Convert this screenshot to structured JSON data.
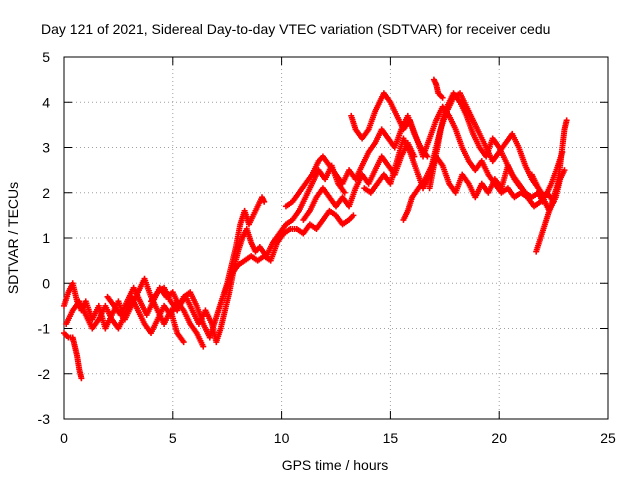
{
  "chart_data": {
    "type": "scatter",
    "title": "Day 121 of 2021, Sidereal Day-to-day VTEC variation (SDTVAR) for receiver cedu",
    "xlabel": "GPS time / hours",
    "ylabel": "SDTVAR / TECUs",
    "xlim": [
      0,
      25
    ],
    "ylim": [
      -3,
      5
    ],
    "xticks": [
      0,
      5,
      10,
      15,
      20,
      25
    ],
    "yticks": [
      -3,
      -2,
      -1,
      0,
      1,
      2,
      3,
      4,
      5
    ],
    "grid": true,
    "marker": "plus",
    "color": "#ff0000",
    "series": [
      {
        "points": [
          [
            0.0,
            -0.5
          ],
          [
            0.2,
            -0.2
          ],
          [
            0.4,
            0.0
          ],
          [
            0.6,
            -0.4
          ],
          [
            0.8,
            -0.6
          ],
          [
            1.0,
            -0.4
          ],
          [
            1.3,
            -0.8
          ],
          [
            1.6,
            -0.5
          ],
          [
            1.9,
            -1.0
          ],
          [
            2.2,
            -0.7
          ],
          [
            2.5,
            -0.4
          ],
          [
            2.8,
            -0.8
          ],
          [
            3.1,
            -0.5
          ],
          [
            3.4,
            -0.2
          ],
          [
            3.7,
            0.1
          ],
          [
            4.0,
            -0.3
          ],
          [
            4.3,
            -0.6
          ],
          [
            4.6,
            -0.9
          ],
          [
            4.9,
            -0.6
          ],
          [
            5.2,
            -1.1
          ],
          [
            5.5,
            -1.3
          ]
        ]
      },
      {
        "points": [
          [
            0.1,
            -0.9
          ],
          [
            0.4,
            -0.6
          ],
          [
            0.7,
            -0.4
          ],
          [
            1.0,
            -0.7
          ],
          [
            1.3,
            -1.0
          ],
          [
            1.6,
            -0.8
          ],
          [
            1.9,
            -0.5
          ],
          [
            2.2,
            -0.8
          ],
          [
            2.5,
            -1.0
          ],
          [
            2.8,
            -0.7
          ],
          [
            3.1,
            -0.3
          ],
          [
            3.4,
            -0.6
          ],
          [
            3.7,
            -0.9
          ],
          [
            4.0,
            -1.1
          ],
          [
            4.3,
            -0.8
          ],
          [
            4.6,
            -0.5
          ],
          [
            4.9,
            -0.7
          ],
          [
            5.2,
            -0.4
          ],
          [
            5.5,
            -0.6
          ],
          [
            5.8,
            -0.9
          ],
          [
            6.1,
            -1.1
          ],
          [
            6.4,
            -1.4
          ]
        ]
      },
      {
        "points": [
          [
            0.0,
            -1.1
          ],
          [
            0.2,
            -1.2
          ],
          [
            0.4,
            -1.2
          ],
          [
            0.5,
            -1.4
          ],
          [
            0.6,
            -1.6
          ],
          [
            0.7,
            -1.9
          ],
          [
            0.8,
            -2.1
          ]
        ]
      },
      {
        "points": [
          [
            2.0,
            -0.3
          ],
          [
            2.3,
            -0.5
          ],
          [
            2.6,
            -0.7
          ],
          [
            2.9,
            -0.4
          ],
          [
            3.2,
            -0.1
          ],
          [
            3.5,
            -0.4
          ],
          [
            3.8,
            -0.7
          ],
          [
            4.1,
            -0.4
          ],
          [
            4.4,
            -0.1
          ],
          [
            4.7,
            -0.3
          ],
          [
            5.0,
            -0.2
          ],
          [
            5.3,
            -0.5
          ],
          [
            5.6,
            -0.3
          ],
          [
            5.9,
            -0.6
          ],
          [
            6.2,
            -0.9
          ],
          [
            6.5,
            -0.6
          ],
          [
            6.8,
            -0.9
          ],
          [
            7.0,
            -1.3
          ],
          [
            7.2,
            -1.0
          ],
          [
            7.4,
            -0.6
          ],
          [
            7.6,
            -0.2
          ],
          [
            7.8,
            0.3
          ],
          [
            8.0,
            0.7
          ],
          [
            8.2,
            1.0
          ],
          [
            8.4,
            1.2
          ],
          [
            8.6,
            0.9
          ],
          [
            8.8,
            0.7
          ],
          [
            9.0,
            0.8
          ],
          [
            9.3,
            0.6
          ],
          [
            9.6,
            0.9
          ],
          [
            9.9,
            1.1
          ],
          [
            10.2,
            1.3
          ],
          [
            10.5,
            1.4
          ],
          [
            10.8,
            1.6
          ],
          [
            11.1,
            1.9
          ],
          [
            11.4,
            2.2
          ],
          [
            11.7,
            2.5
          ],
          [
            12.0,
            2.3
          ],
          [
            12.3,
            2.6
          ],
          [
            12.6,
            2.2
          ],
          [
            12.9,
            2.0
          ]
        ]
      },
      {
        "points": [
          [
            4.0,
            -0.4
          ],
          [
            4.3,
            -0.2
          ],
          [
            4.6,
            -0.1
          ],
          [
            4.9,
            -0.4
          ],
          [
            5.2,
            -0.6
          ],
          [
            5.5,
            -0.3
          ],
          [
            5.8,
            -0.2
          ],
          [
            6.1,
            -0.5
          ],
          [
            6.4,
            -0.9
          ],
          [
            6.7,
            -1.2
          ],
          [
            6.9,
            -0.9
          ],
          [
            7.1,
            -0.6
          ],
          [
            7.3,
            -0.3
          ],
          [
            7.5,
            0.0
          ],
          [
            7.7,
            0.4
          ],
          [
            7.9,
            0.8
          ],
          [
            8.1,
            1.3
          ],
          [
            8.3,
            1.6
          ],
          [
            8.5,
            1.3
          ],
          [
            8.8,
            1.6
          ],
          [
            9.1,
            1.9
          ],
          [
            9.2,
            1.8
          ]
        ]
      },
      {
        "points": [
          [
            7.4,
            -0.2
          ],
          [
            7.7,
            0.2
          ],
          [
            8.0,
            0.4
          ],
          [
            8.3,
            0.5
          ],
          [
            8.6,
            0.6
          ],
          [
            8.9,
            0.5
          ],
          [
            9.2,
            0.6
          ],
          [
            9.5,
            0.5
          ],
          [
            9.8,
            0.9
          ],
          [
            10.1,
            1.1
          ],
          [
            10.4,
            1.2
          ],
          [
            10.7,
            1.2
          ],
          [
            11.0,
            1.1
          ],
          [
            11.3,
            1.3
          ],
          [
            11.6,
            1.2
          ],
          [
            11.9,
            1.4
          ],
          [
            12.2,
            1.6
          ],
          [
            12.5,
            1.5
          ],
          [
            12.8,
            1.3
          ],
          [
            13.1,
            1.4
          ],
          [
            13.3,
            1.5
          ]
        ]
      },
      {
        "points": [
          [
            10.2,
            1.7
          ],
          [
            10.5,
            1.8
          ],
          [
            10.8,
            2.0
          ],
          [
            11.1,
            2.2
          ],
          [
            11.4,
            2.4
          ],
          [
            11.7,
            2.7
          ],
          [
            11.9,
            2.8
          ],
          [
            12.2,
            2.6
          ],
          [
            12.5,
            2.4
          ],
          [
            12.8,
            2.2
          ],
          [
            13.1,
            2.5
          ],
          [
            13.4,
            2.3
          ],
          [
            13.7,
            2.6
          ],
          [
            14.0,
            2.9
          ],
          [
            14.3,
            3.1
          ],
          [
            14.6,
            3.4
          ],
          [
            14.9,
            3.2
          ],
          [
            15.2,
            3.0
          ],
          [
            15.5,
            3.4
          ],
          [
            15.8,
            3.7
          ],
          [
            16.1,
            3.3
          ],
          [
            16.4,
            3.0
          ],
          [
            16.7,
            2.8
          ]
        ]
      },
      {
        "points": [
          [
            11.0,
            1.4
          ],
          [
            11.3,
            1.6
          ],
          [
            11.6,
            1.9
          ],
          [
            11.9,
            2.1
          ],
          [
            12.2,
            1.9
          ],
          [
            12.5,
            1.7
          ],
          [
            12.8,
            1.9
          ],
          [
            13.1,
            1.7
          ],
          [
            13.4,
            2.1
          ],
          [
            13.7,
            2.4
          ],
          [
            14.0,
            2.2
          ],
          [
            14.3,
            2.5
          ],
          [
            14.6,
            2.8
          ],
          [
            14.9,
            2.6
          ],
          [
            15.2,
            2.4
          ],
          [
            15.5,
            2.8
          ],
          [
            15.8,
            3.1
          ],
          [
            16.1,
            2.8
          ]
        ]
      },
      {
        "points": [
          [
            13.2,
            3.7
          ],
          [
            13.4,
            3.4
          ],
          [
            13.7,
            3.2
          ],
          [
            14.0,
            3.4
          ],
          [
            14.3,
            3.8
          ],
          [
            14.5,
            4.0
          ],
          [
            14.7,
            4.2
          ],
          [
            15.0,
            4.0
          ],
          [
            15.3,
            3.7
          ],
          [
            15.6,
            3.4
          ],
          [
            15.9,
            3.6
          ],
          [
            16.2,
            3.2
          ],
          [
            16.5,
            2.8
          ],
          [
            16.8,
            3.2
          ],
          [
            17.1,
            3.6
          ],
          [
            17.4,
            3.9
          ],
          [
            17.7,
            3.7
          ],
          [
            18.0,
            3.4
          ],
          [
            18.3,
            3.0
          ],
          [
            18.6,
            2.7
          ],
          [
            18.9,
            2.5
          ],
          [
            19.2,
            2.7
          ],
          [
            19.5,
            2.4
          ],
          [
            19.8,
            2.2
          ],
          [
            20.1,
            2.0
          ],
          [
            20.4,
            2.1
          ],
          [
            20.7,
            1.9
          ],
          [
            21.0,
            2.0
          ],
          [
            21.3,
            1.9
          ],
          [
            21.6,
            1.7
          ],
          [
            21.9,
            1.8
          ],
          [
            22.2,
            2.0
          ],
          [
            22.5,
            1.8
          ]
        ]
      },
      {
        "points": [
          [
            13.8,
            2.1
          ],
          [
            14.1,
            2.0
          ],
          [
            14.4,
            2.2
          ],
          [
            14.7,
            2.4
          ],
          [
            15.0,
            2.2
          ],
          [
            15.3,
            2.7
          ],
          [
            15.6,
            3.2
          ],
          [
            15.9,
            2.9
          ],
          [
            16.2,
            2.5
          ],
          [
            16.5,
            2.1
          ],
          [
            16.8,
            2.4
          ],
          [
            17.1,
            2.8
          ],
          [
            17.4,
            2.6
          ],
          [
            17.7,
            2.2
          ],
          [
            18.0,
            2.0
          ],
          [
            18.3,
            2.4
          ],
          [
            18.6,
            2.2
          ],
          [
            18.9,
            1.9
          ],
          [
            19.2,
            2.2
          ],
          [
            19.5,
            2.0
          ],
          [
            19.8,
            2.3
          ],
          [
            20.1,
            2.1
          ],
          [
            20.4,
            2.6
          ],
          [
            20.7,
            2.3
          ],
          [
            21.0,
            2.1
          ]
        ]
      },
      {
        "points": [
          [
            15.6,
            1.4
          ],
          [
            15.8,
            1.6
          ],
          [
            16.0,
            1.9
          ],
          [
            16.3,
            2.1
          ],
          [
            16.6,
            2.3
          ],
          [
            16.9,
            2.6
          ],
          [
            17.1,
            3.0
          ],
          [
            17.3,
            3.4
          ],
          [
            17.6,
            3.8
          ],
          [
            17.9,
            4.1
          ],
          [
            18.2,
            4.2
          ],
          [
            18.5,
            3.9
          ],
          [
            18.8,
            3.6
          ],
          [
            19.1,
            3.3
          ],
          [
            19.4,
            3.0
          ],
          [
            19.7,
            2.7
          ],
          [
            20.0,
            2.9
          ],
          [
            20.3,
            3.1
          ],
          [
            20.6,
            3.3
          ],
          [
            20.9,
            3.0
          ],
          [
            21.2,
            2.6
          ],
          [
            21.5,
            2.3
          ],
          [
            21.8,
            2.1
          ],
          [
            22.1,
            1.9
          ],
          [
            22.4,
            2.2
          ],
          [
            22.7,
            2.6
          ],
          [
            22.9,
            2.9
          ]
        ]
      },
      {
        "points": [
          [
            16.8,
            2.1
          ],
          [
            17.0,
            2.6
          ],
          [
            17.2,
            3.1
          ],
          [
            17.4,
            3.6
          ],
          [
            17.6,
            3.9
          ],
          [
            17.9,
            4.2
          ],
          [
            18.2,
            4.0
          ],
          [
            18.5,
            3.7
          ],
          [
            18.8,
            3.3
          ],
          [
            19.1,
            3.0
          ],
          [
            19.4,
            2.8
          ],
          [
            19.7,
            3.2
          ],
          [
            20.0,
            3.0
          ],
          [
            20.3,
            2.7
          ],
          [
            20.6,
            2.4
          ],
          [
            20.9,
            2.2
          ],
          [
            21.2,
            2.0
          ],
          [
            21.5,
            1.9
          ],
          [
            21.8,
            2.0
          ],
          [
            22.0,
            1.8
          ]
        ]
      },
      {
        "points": [
          [
            17.0,
            4.5
          ],
          [
            17.1,
            4.4
          ],
          [
            17.2,
            4.2
          ],
          [
            17.4,
            4.1
          ]
        ]
      },
      {
        "points": [
          [
            21.7,
            0.7
          ],
          [
            21.9,
            1.0
          ],
          [
            22.1,
            1.3
          ],
          [
            22.3,
            1.6
          ],
          [
            22.5,
            1.9
          ],
          [
            22.7,
            2.2
          ],
          [
            22.8,
            2.6
          ],
          [
            22.9,
            3.0
          ],
          [
            23.0,
            3.4
          ],
          [
            23.1,
            3.6
          ]
        ]
      },
      {
        "points": [
          [
            21.5,
            2.4
          ],
          [
            21.8,
            2.1
          ],
          [
            22.1,
            1.8
          ],
          [
            22.3,
            1.6
          ],
          [
            22.6,
            1.9
          ],
          [
            22.8,
            2.3
          ],
          [
            23.0,
            2.5
          ]
        ]
      }
    ]
  }
}
